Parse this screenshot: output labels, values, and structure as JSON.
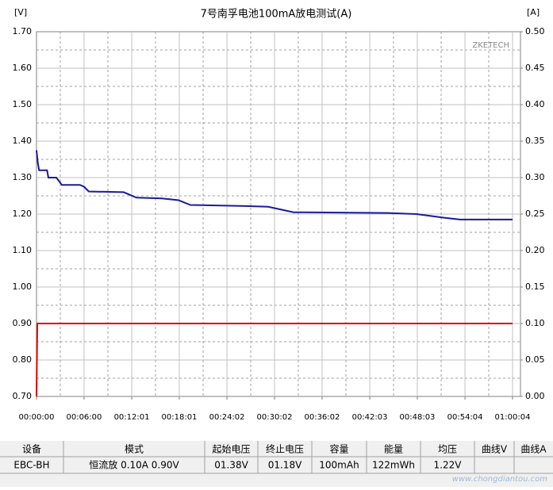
{
  "chart_data": {
    "type": "line",
    "title": "7号南孚电池100mA放电测试(A)",
    "y_label": "[V]",
    "y2_label": "[A]",
    "watermark": "ZKETECH",
    "xlim": [
      0,
      3664
    ],
    "xticks": [
      {
        "value": 0,
        "label": "00:00:00"
      },
      {
        "value": 360,
        "label": "00:06:00"
      },
      {
        "value": 721,
        "label": "00:12:01"
      },
      {
        "value": 1081,
        "label": "00:18:01"
      },
      {
        "value": 1442,
        "label": "00:24:02"
      },
      {
        "value": 1802,
        "label": "00:30:02"
      },
      {
        "value": 2162,
        "label": "00:36:02"
      },
      {
        "value": 2523,
        "label": "00:42:03"
      },
      {
        "value": 2883,
        "label": "00:48:03"
      },
      {
        "value": 3244,
        "label": "00:54:04"
      },
      {
        "value": 3604,
        "label": "01:00:04"
      }
    ],
    "ylim": [
      0.7,
      1.7
    ],
    "yticks": [
      {
        "value": 0.7,
        "label": "0.70"
      },
      {
        "value": 0.8,
        "label": "0.80"
      },
      {
        "value": 0.9,
        "label": "0.90"
      },
      {
        "value": 1.0,
        "label": "1.00"
      },
      {
        "value": 1.1,
        "label": "1.10"
      },
      {
        "value": 1.2,
        "label": "1.20"
      },
      {
        "value": 1.3,
        "label": "1.30"
      },
      {
        "value": 1.4,
        "label": "1.40"
      },
      {
        "value": 1.5,
        "label": "1.50"
      },
      {
        "value": 1.6,
        "label": "1.60"
      },
      {
        "value": 1.7,
        "label": "1.70"
      }
    ],
    "y2lim": [
      0,
      0.5
    ],
    "y2ticks": [
      {
        "value": 0,
        "label": "0.00"
      },
      {
        "value": 0.05,
        "label": "0.05"
      },
      {
        "value": 0.1,
        "label": "0.10"
      },
      {
        "value": 0.15,
        "label": "0.15"
      },
      {
        "value": 0.2,
        "label": "0.20"
      },
      {
        "value": 0.25,
        "label": "0.25"
      },
      {
        "value": 0.3,
        "label": "0.30"
      },
      {
        "value": 0.35,
        "label": "0.35"
      },
      {
        "value": 0.4,
        "label": "0.40"
      },
      {
        "value": 0.45,
        "label": "0.45"
      },
      {
        "value": 0.5,
        "label": "0.50"
      }
    ],
    "grid": true,
    "series": [
      {
        "color": "#1a1a9c",
        "x": [
          0,
          10,
          20,
          80,
          90,
          150,
          192,
          330,
          360,
          396,
          660,
          757,
          949,
          1075,
          1165,
          1585,
          1754,
          1946,
          2655,
          2877,
          3087,
          3207,
          3604
        ],
        "values": [
          1.375,
          1.34,
          1.32,
          1.32,
          1.3,
          1.3,
          1.28,
          1.28,
          1.275,
          1.262,
          1.26,
          1.245,
          1.243,
          1.238,
          1.225,
          1.222,
          1.22,
          1.205,
          1.203,
          1.2,
          1.19,
          1.185,
          1.185
        ]
      },
      {
        "color": "#e00000",
        "axis": "y2",
        "x": [
          0,
          6,
          3604
        ],
        "values": [
          0,
          0.1,
          0.1
        ]
      }
    ]
  },
  "table": {
    "columns": [
      "设备",
      "模式",
      "起始电压",
      "终止电压",
      "容量",
      "能量",
      "均压",
      "曲线V",
      "曲线A"
    ],
    "rows": [
      [
        "EBC-BH",
        "恒流放  0.10A  0.90V",
        "01.38V",
        "01.18V",
        "100mAh",
        "122mWh",
        "1.22V",
        "",
        ""
      ]
    ]
  },
  "site": "www.chongdiantou.com"
}
